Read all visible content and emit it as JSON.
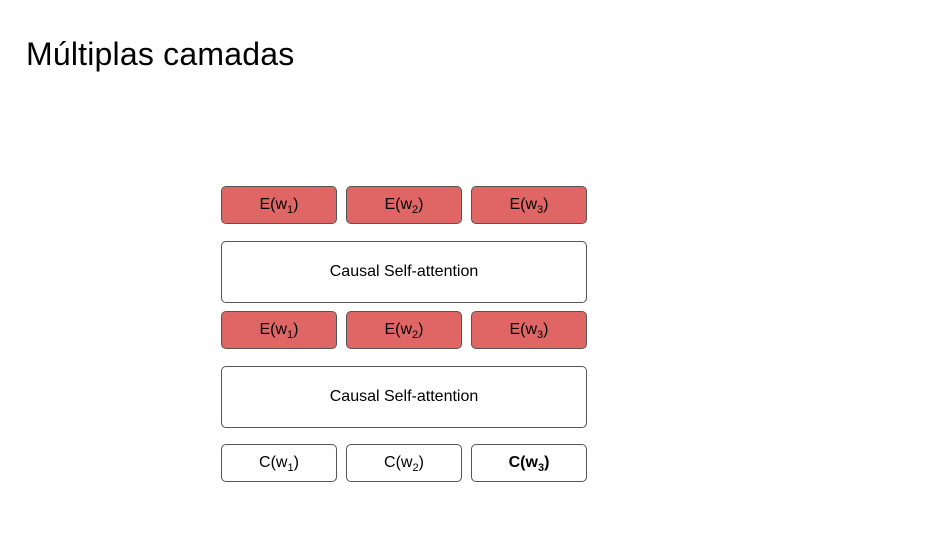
{
  "title": "Múltiplas camadas",
  "colors": {
    "embedding_fill": "#e06666",
    "border": "#555555"
  },
  "top_embeddings": [
    {
      "prefix": "E(w",
      "sub": "1",
      "suffix": ")"
    },
    {
      "prefix": "E(w",
      "sub": "2",
      "suffix": ")"
    },
    {
      "prefix": "E(w",
      "sub": "3",
      "suffix": ")"
    }
  ],
  "attention_layer_1": {
    "label": "Causal Self-attention"
  },
  "middle_embeddings": [
    {
      "prefix": "E(w",
      "sub": "1",
      "suffix": ")"
    },
    {
      "prefix": "E(w",
      "sub": "2",
      "suffix": ")"
    },
    {
      "prefix": "E(w",
      "sub": "3",
      "suffix": ")"
    }
  ],
  "attention_layer_2": {
    "label": "Causal Self-attention"
  },
  "contexts": [
    {
      "prefix": "C(w",
      "sub": "1",
      "suffix": ")"
    },
    {
      "prefix": "C(w",
      "sub": "2",
      "suffix": ")"
    },
    {
      "prefix": "C(w",
      "sub": "3",
      "suffix": ")"
    }
  ]
}
